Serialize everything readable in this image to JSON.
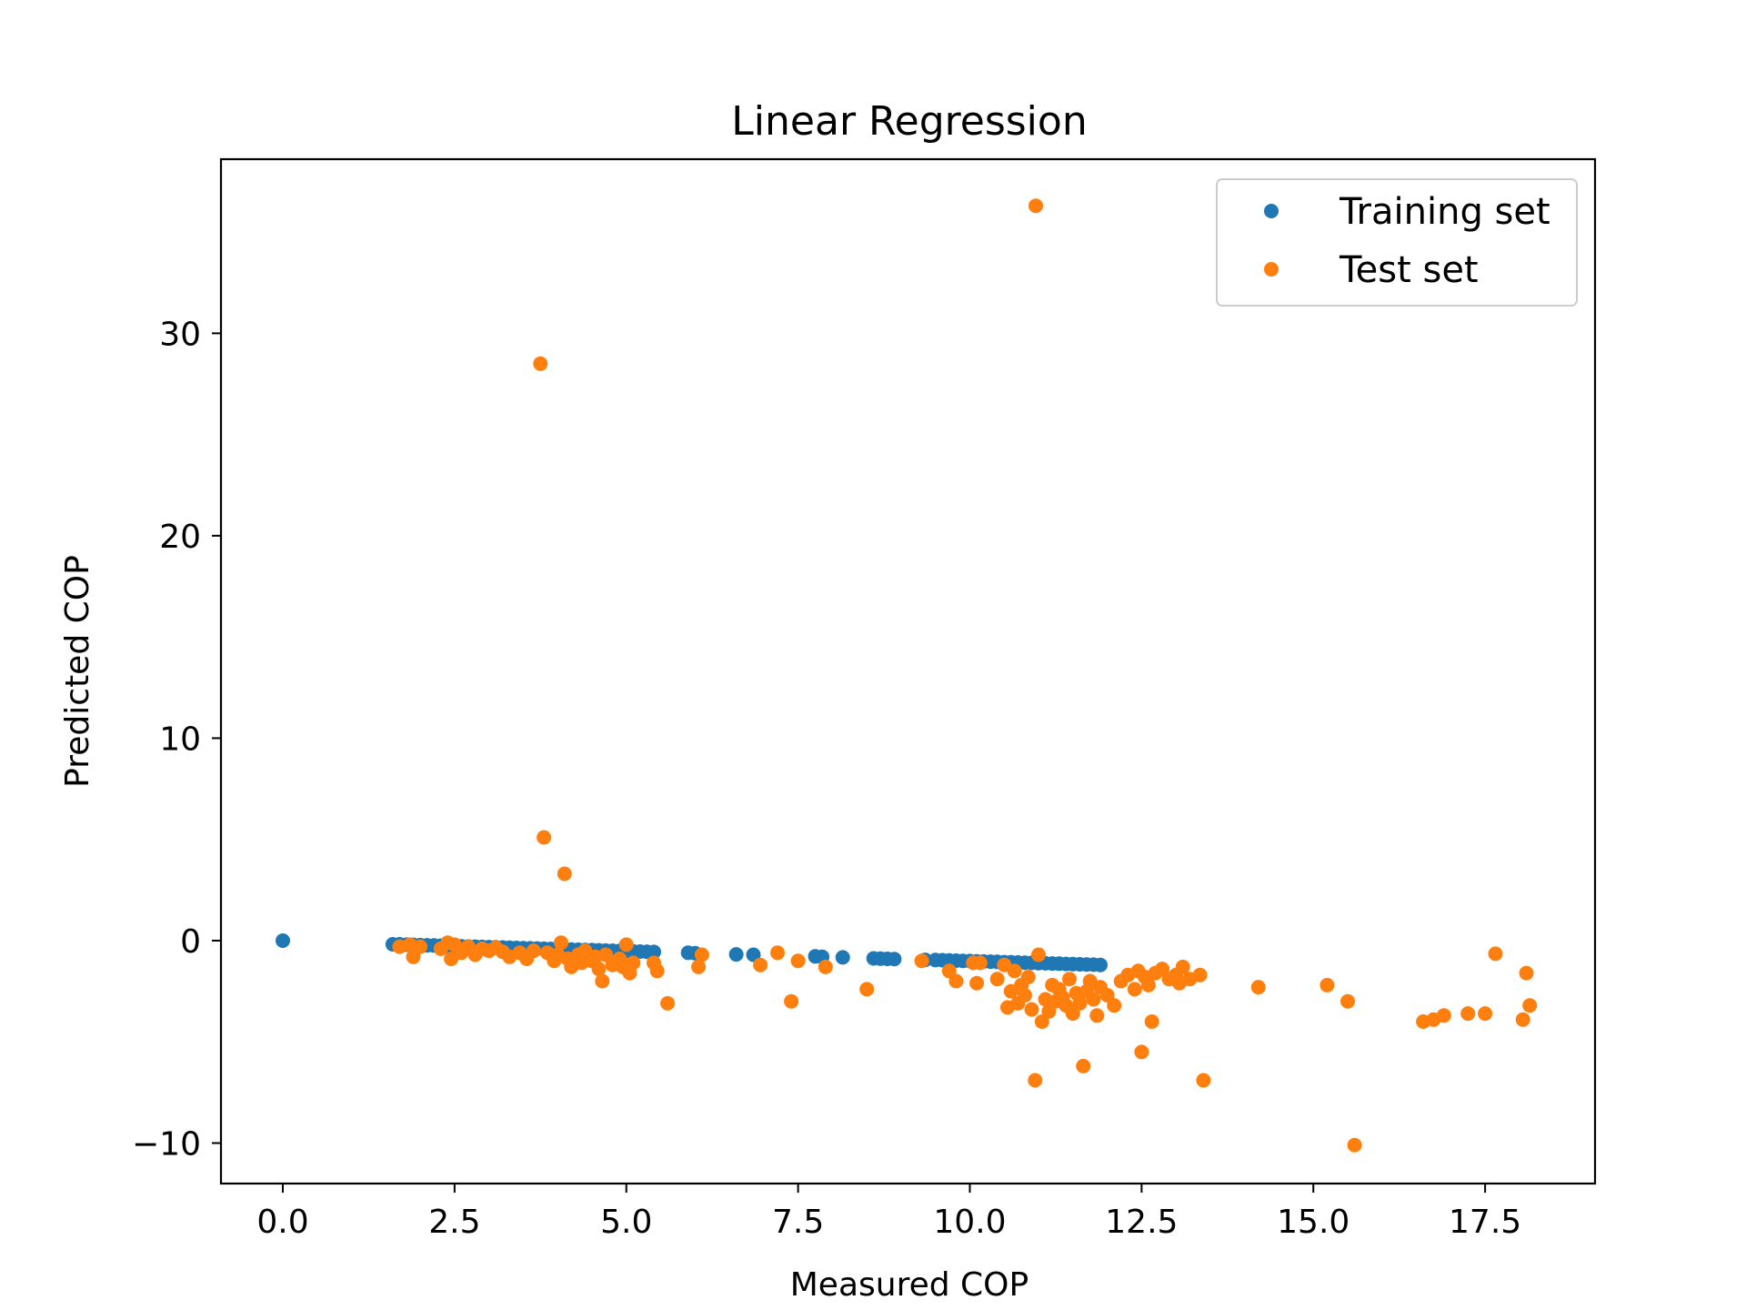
{
  "chart_data": {
    "type": "scatter",
    "title": "Linear Regression",
    "xlabel": "Measured COP",
    "ylabel": "Predicted COP",
    "xlim": [
      -0.9,
      19.1
    ],
    "ylim": [
      -12.0,
      38.6
    ],
    "xticks": [
      0.0,
      2.5,
      5.0,
      7.5,
      10.0,
      12.5,
      15.0,
      17.5
    ],
    "xtick_labels": [
      "0.0",
      "2.5",
      "5.0",
      "7.5",
      "10.0",
      "12.5",
      "15.0",
      "17.5"
    ],
    "yticks": [
      -10,
      0,
      10,
      20,
      30
    ],
    "ytick_labels": [
      "−10",
      "0",
      "10",
      "20",
      "30"
    ],
    "grid": false,
    "legend_position": "top-right",
    "series": [
      {
        "name": "Training set",
        "color": "#1f77b4",
        "points": [
          [
            0.0,
            0.0
          ],
          [
            1.6,
            -0.18
          ],
          [
            1.7,
            -0.18
          ],
          [
            1.8,
            -0.2
          ],
          [
            1.9,
            -0.21
          ],
          [
            2.0,
            -0.22
          ],
          [
            2.1,
            -0.23
          ],
          [
            2.2,
            -0.24
          ],
          [
            2.3,
            -0.25
          ],
          [
            2.4,
            -0.26
          ],
          [
            2.5,
            -0.27
          ],
          [
            2.6,
            -0.28
          ],
          [
            2.7,
            -0.29
          ],
          [
            2.8,
            -0.3
          ],
          [
            2.9,
            -0.31
          ],
          [
            3.0,
            -0.32
          ],
          [
            3.1,
            -0.33
          ],
          [
            3.2,
            -0.34
          ],
          [
            3.3,
            -0.35
          ],
          [
            3.4,
            -0.36
          ],
          [
            3.5,
            -0.37
          ],
          [
            3.6,
            -0.38
          ],
          [
            3.7,
            -0.39
          ],
          [
            3.8,
            -0.4
          ],
          [
            3.9,
            -0.41
          ],
          [
            4.0,
            -0.42
          ],
          [
            4.1,
            -0.43
          ],
          [
            4.2,
            -0.44
          ],
          [
            4.3,
            -0.45
          ],
          [
            4.4,
            -0.46
          ],
          [
            4.5,
            -0.47
          ],
          [
            4.6,
            -0.48
          ],
          [
            4.7,
            -0.49
          ],
          [
            4.8,
            -0.5
          ],
          [
            4.9,
            -0.51
          ],
          [
            5.0,
            -0.52
          ],
          [
            5.1,
            -0.53
          ],
          [
            5.2,
            -0.54
          ],
          [
            5.3,
            -0.55
          ],
          [
            5.4,
            -0.56
          ],
          [
            5.9,
            -0.6
          ],
          [
            6.0,
            -0.62
          ],
          [
            6.6,
            -0.68
          ],
          [
            6.85,
            -0.7
          ],
          [
            7.75,
            -0.78
          ],
          [
            7.85,
            -0.8
          ],
          [
            8.15,
            -0.83
          ],
          [
            8.6,
            -0.88
          ],
          [
            8.7,
            -0.89
          ],
          [
            8.8,
            -0.9
          ],
          [
            8.9,
            -0.91
          ],
          [
            9.35,
            -0.95
          ],
          [
            9.5,
            -0.96
          ],
          [
            9.6,
            -0.97
          ],
          [
            9.7,
            -0.98
          ],
          [
            9.8,
            -0.99
          ],
          [
            9.9,
            -1.0
          ],
          [
            10.0,
            -1.01
          ],
          [
            10.1,
            -1.02
          ],
          [
            10.2,
            -1.03
          ],
          [
            10.3,
            -1.04
          ],
          [
            10.4,
            -1.05
          ],
          [
            10.5,
            -1.06
          ],
          [
            10.6,
            -1.07
          ],
          [
            10.7,
            -1.08
          ],
          [
            10.8,
            -1.09
          ],
          [
            10.9,
            -1.1
          ],
          [
            11.0,
            -1.11
          ],
          [
            11.1,
            -1.12
          ],
          [
            11.2,
            -1.13
          ],
          [
            11.3,
            -1.14
          ],
          [
            11.4,
            -1.15
          ],
          [
            11.5,
            -1.16
          ],
          [
            11.6,
            -1.17
          ],
          [
            11.7,
            -1.18
          ],
          [
            11.8,
            -1.19
          ],
          [
            11.9,
            -1.2
          ]
        ]
      },
      {
        "name": "Test set",
        "color": "#ff7f0e",
        "points": [
          [
            1.7,
            -0.3
          ],
          [
            1.85,
            -0.2
          ],
          [
            1.9,
            -0.8
          ],
          [
            2.0,
            -0.3
          ],
          [
            2.3,
            -0.4
          ],
          [
            2.4,
            -0.1
          ],
          [
            2.45,
            -0.9
          ],
          [
            2.5,
            -0.2
          ],
          [
            2.6,
            -0.6
          ],
          [
            2.7,
            -0.3
          ],
          [
            2.8,
            -0.7
          ],
          [
            2.9,
            -0.4
          ],
          [
            3.0,
            -0.5
          ],
          [
            3.1,
            -0.35
          ],
          [
            3.2,
            -0.55
          ],
          [
            3.3,
            -0.8
          ],
          [
            3.45,
            -0.6
          ],
          [
            3.55,
            -0.9
          ],
          [
            3.65,
            -0.5
          ],
          [
            3.75,
            28.5
          ],
          [
            3.8,
            5.1
          ],
          [
            3.85,
            -0.6
          ],
          [
            3.95,
            -1.0
          ],
          [
            4.0,
            -0.7
          ],
          [
            4.05,
            -0.1
          ],
          [
            4.1,
            3.3
          ],
          [
            4.15,
            -0.9
          ],
          [
            4.2,
            -1.3
          ],
          [
            4.3,
            -0.7
          ],
          [
            4.35,
            -1.1
          ],
          [
            4.4,
            -0.5
          ],
          [
            4.5,
            -1.0
          ],
          [
            4.55,
            -0.8
          ],
          [
            4.6,
            -1.4
          ],
          [
            4.65,
            -2.0
          ],
          [
            4.7,
            -0.7
          ],
          [
            4.8,
            -1.2
          ],
          [
            4.9,
            -0.9
          ],
          [
            4.95,
            -1.3
          ],
          [
            5.0,
            -0.2
          ],
          [
            5.05,
            -1.6
          ],
          [
            5.1,
            -1.1
          ],
          [
            5.4,
            -1.1
          ],
          [
            5.45,
            -1.5
          ],
          [
            5.6,
            -3.1
          ],
          [
            6.05,
            -1.3
          ],
          [
            6.1,
            -0.7
          ],
          [
            6.95,
            -1.2
          ],
          [
            7.2,
            -0.6
          ],
          [
            7.4,
            -3.0
          ],
          [
            7.5,
            -1.0
          ],
          [
            7.9,
            -1.3
          ],
          [
            8.5,
            -2.4
          ],
          [
            9.3,
            -1.0
          ],
          [
            9.7,
            -1.5
          ],
          [
            9.8,
            -2.0
          ],
          [
            10.05,
            -1.1
          ],
          [
            10.1,
            -2.1
          ],
          [
            10.15,
            -1.1
          ],
          [
            10.4,
            -1.9
          ],
          [
            10.5,
            -1.2
          ],
          [
            10.55,
            -3.3
          ],
          [
            10.6,
            -2.5
          ],
          [
            10.65,
            -1.5
          ],
          [
            10.7,
            -3.1
          ],
          [
            10.75,
            -2.2
          ],
          [
            10.8,
            -2.7
          ],
          [
            10.85,
            -1.8
          ],
          [
            10.9,
            -3.4
          ],
          [
            10.95,
            -6.9
          ],
          [
            10.96,
            36.3
          ],
          [
            11.0,
            -0.7
          ],
          [
            11.05,
            -4.0
          ],
          [
            11.1,
            -2.9
          ],
          [
            11.15,
            -3.5
          ],
          [
            11.2,
            -2.2
          ],
          [
            11.25,
            -3.0
          ],
          [
            11.3,
            -2.4
          ],
          [
            11.35,
            -2.8
          ],
          [
            11.4,
            -3.2
          ],
          [
            11.45,
            -1.9
          ],
          [
            11.5,
            -3.6
          ],
          [
            11.55,
            -2.6
          ],
          [
            11.6,
            -3.1
          ],
          [
            11.65,
            -6.2
          ],
          [
            11.7,
            -2.5
          ],
          [
            11.75,
            -2.0
          ],
          [
            11.8,
            -2.9
          ],
          [
            11.85,
            -3.7
          ],
          [
            11.9,
            -2.3
          ],
          [
            12.0,
            -2.7
          ],
          [
            12.1,
            -3.2
          ],
          [
            12.2,
            -2.0
          ],
          [
            12.3,
            -1.7
          ],
          [
            12.4,
            -2.4
          ],
          [
            12.45,
            -1.5
          ],
          [
            12.5,
            -5.5
          ],
          [
            12.55,
            -1.8
          ],
          [
            12.6,
            -2.2
          ],
          [
            12.65,
            -4.0
          ],
          [
            12.7,
            -1.6
          ],
          [
            12.8,
            -1.4
          ],
          [
            12.9,
            -1.9
          ],
          [
            13.0,
            -1.7
          ],
          [
            13.05,
            -2.1
          ],
          [
            13.1,
            -1.3
          ],
          [
            13.2,
            -1.9
          ],
          [
            13.35,
            -1.7
          ],
          [
            13.4,
            -6.9
          ],
          [
            14.2,
            -2.3
          ],
          [
            15.2,
            -2.2
          ],
          [
            15.5,
            -3.0
          ],
          [
            15.6,
            -10.1
          ],
          [
            16.6,
            -4.0
          ],
          [
            16.75,
            -3.9
          ],
          [
            16.9,
            -3.7
          ],
          [
            17.25,
            -3.6
          ],
          [
            17.5,
            -3.6
          ],
          [
            17.65,
            -0.65
          ],
          [
            18.05,
            -3.9
          ],
          [
            18.1,
            -1.6
          ],
          [
            18.15,
            -3.2
          ]
        ]
      }
    ]
  }
}
